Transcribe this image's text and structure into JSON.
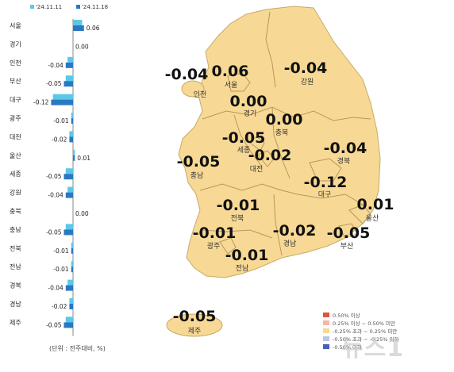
{
  "chart_data": [
    {
      "type": "bar",
      "orientation": "horizontal",
      "legend": {
        "placement": "top",
        "entries": [
          {
            "label": "'24.11.11",
            "color": "#5bc8e8"
          },
          {
            "label": "'24.11.18",
            "color": "#2b78c2"
          }
        ]
      },
      "categories": [
        "서울",
        "경기",
        "인천",
        "부산",
        "대구",
        "광주",
        "대전",
        "울산",
        "세종",
        "강원",
        "충북",
        "충남",
        "전북",
        "전남",
        "경북",
        "경남",
        "제주"
      ],
      "series": [
        {
          "name": "'24.11.11",
          "values": [
            0.05,
            0.0,
            -0.03,
            -0.04,
            -0.11,
            -0.01,
            -0.02,
            0.01,
            -0.04,
            -0.03,
            0.0,
            -0.04,
            -0.01,
            -0.01,
            -0.03,
            -0.02,
            -0.04
          ]
        },
        {
          "name": "'24.11.18",
          "values": [
            0.06,
            0.0,
            -0.04,
            -0.05,
            -0.12,
            -0.01,
            -0.02,
            0.01,
            -0.05,
            -0.04,
            0.0,
            -0.05,
            -0.01,
            -0.01,
            -0.04,
            -0.02,
            -0.05
          ]
        }
      ],
      "value_labels": [
        "0.06",
        "0.00",
        "-0.04",
        "-0.05",
        "-0.12",
        "-0.01",
        "-0.02",
        "0.01",
        "-0.05",
        "-0.04",
        "0.00",
        "-0.05",
        "-0.01",
        "-0.01",
        "-0.04",
        "-0.02",
        "-0.05"
      ],
      "note": "(단위 : 전주대비, %)"
    },
    {
      "type": "choropleth-map",
      "regions": [
        {
          "name": "인천",
          "value": "-0.04"
        },
        {
          "name": "서울",
          "value": "0.06"
        },
        {
          "name": "강원",
          "value": "-0.04"
        },
        {
          "name": "경기",
          "value": "0.00"
        },
        {
          "name": "충북",
          "value": "0.00"
        },
        {
          "name": "세종",
          "value": "-0.05"
        },
        {
          "name": "충남",
          "value": "-0.05"
        },
        {
          "name": "대전",
          "value": "-0.02"
        },
        {
          "name": "경북",
          "value": "-0.04"
        },
        {
          "name": "대구",
          "value": "-0.12"
        },
        {
          "name": "울산",
          "value": "0.01"
        },
        {
          "name": "전북",
          "value": "-0.01"
        },
        {
          "name": "광주",
          "value": "-0.01"
        },
        {
          "name": "전남",
          "value": "-0.01"
        },
        {
          "name": "경남",
          "value": "-0.02"
        },
        {
          "name": "부산",
          "value": "-0.05"
        },
        {
          "name": "제주",
          "value": "-0.05"
        }
      ],
      "legend": {
        "placement": "bottom-right",
        "entries": [
          {
            "label": "0.50% 이상",
            "color": "#e0543f"
          },
          {
            "label": "0.25% 이상 ~ 0.50% 미만",
            "color": "#f2b8a8"
          },
          {
            "label": "-0.25% 초과 ~ 0.25% 미만",
            "color": "#f7d995"
          },
          {
            "label": "-0.50% 초과 ~ -0.25% 이하",
            "color": "#b9c7e4"
          },
          {
            "label": "-0.50% 이하",
            "color": "#4a5fb8"
          }
        ]
      },
      "land_color": "#f7d995"
    }
  ],
  "watermark": "뉴스1"
}
